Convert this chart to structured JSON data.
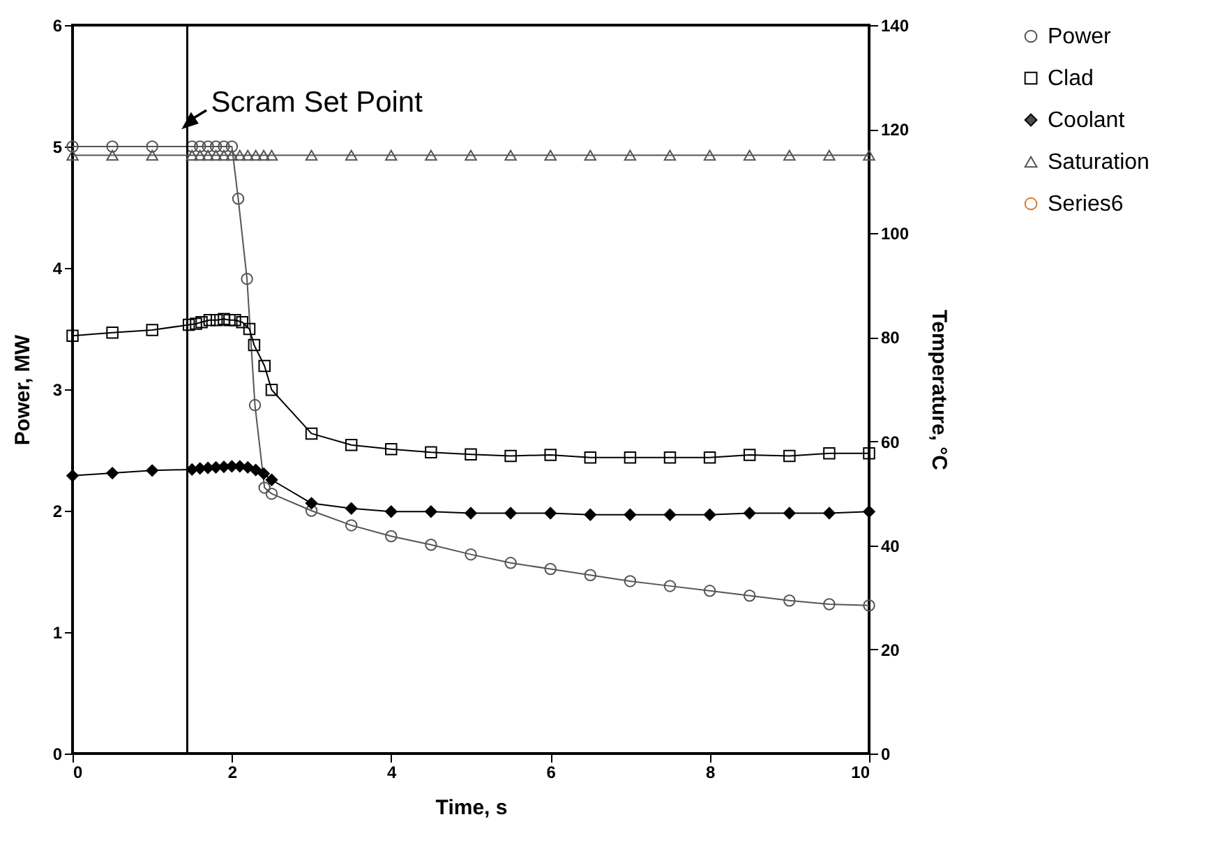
{
  "chart_data": {
    "type": "line",
    "xlabel": "Time, s",
    "ylabel": "Power, MW",
    "y2label": "Temperature, °C",
    "xlim": [
      0,
      10
    ],
    "xticks": [
      0,
      2,
      4,
      6,
      8,
      10
    ],
    "ylim": [
      0,
      6
    ],
    "yticks": [
      0,
      1,
      2,
      3,
      4,
      5,
      6
    ],
    "y2lim": [
      0,
      140
    ],
    "y2ticks": [
      0,
      20,
      40,
      60,
      80,
      100,
      120,
      140
    ],
    "grid": false,
    "legend": "right",
    "line_style": "solid",
    "ref_lines": [
      {
        "axis": "x",
        "value": 1.44,
        "label": "Scram Set Point",
        "color": "#000000"
      }
    ],
    "series": [
      {
        "name": "Power",
        "color": "#555555",
        "marker": "circle",
        "x": [
          0,
          0.5,
          1,
          1.5,
          1.6,
          1.7,
          1.8,
          1.9,
          2.0,
          2.08,
          2.19,
          2.29,
          2.41,
          2.5,
          3,
          3.5,
          4,
          4.5,
          5,
          5.5,
          6,
          6.5,
          7,
          7.5,
          8,
          8.5,
          9,
          9.5,
          10
        ],
        "values": [
          5.0,
          5.0,
          5.0,
          5.0,
          5.0,
          5.0,
          5.0,
          5.0,
          5.0,
          4.57,
          3.91,
          2.87,
          2.19,
          2.14,
          2.0,
          1.88,
          1.79,
          1.72,
          1.64,
          1.57,
          1.52,
          1.47,
          1.42,
          1.38,
          1.34,
          1.3,
          1.26,
          1.23,
          1.22
        ]
      },
      {
        "name": "Clad",
        "color": "#000000",
        "marker": "square",
        "axis": "y2",
        "x": [
          0,
          0.5,
          1,
          1.46,
          1.55,
          1.62,
          1.72,
          1.81,
          1.9,
          1.97,
          2.04,
          2.13,
          2.22,
          2.28,
          2.41,
          2.5,
          3,
          3.5,
          4,
          4.5,
          5,
          5.5,
          6,
          6.5,
          7,
          7.5,
          8,
          8.5,
          9,
          9.5,
          10
        ],
        "values": [
          80.3,
          80.9,
          81.4,
          82.4,
          82.6,
          82.9,
          83.3,
          83.3,
          83.5,
          83.3,
          83.3,
          82.9,
          81.6,
          78.5,
          74.5,
          69.9,
          61.5,
          59.3,
          58.5,
          57.9,
          57.5,
          57.2,
          57.4,
          56.9,
          56.9,
          56.9,
          56.9,
          57.4,
          57.2,
          57.7,
          57.7
        ]
      },
      {
        "name": "Coolant",
        "color": "#000000",
        "marker": "diamond",
        "axis": "y2",
        "x": [
          0,
          0.5,
          1,
          1.5,
          1.6,
          1.7,
          1.8,
          1.9,
          2.0,
          2.1,
          2.2,
          2.3,
          2.4,
          2.5,
          3,
          3.5,
          4,
          4.5,
          5,
          5.5,
          6,
          6.5,
          7,
          7.5,
          8,
          8.5,
          9,
          9.5,
          10
        ],
        "values": [
          53.4,
          53.9,
          54.4,
          54.6,
          54.8,
          54.9,
          55.0,
          55.1,
          55.2,
          55.2,
          55.0,
          54.5,
          53.8,
          52.6,
          48.1,
          47.1,
          46.5,
          46.5,
          46.2,
          46.2,
          46.2,
          45.9,
          45.9,
          45.9,
          45.9,
          46.2,
          46.2,
          46.2,
          46.5
        ]
      },
      {
        "name": "Saturation",
        "color": "#555555",
        "marker": "triangle",
        "axis": "y2",
        "x": [
          0,
          0.5,
          1,
          1.5,
          1.6,
          1.7,
          1.8,
          1.9,
          2.0,
          2.1,
          2.2,
          2.3,
          2.4,
          2.5,
          3,
          3.5,
          4,
          4.5,
          5,
          5.5,
          6,
          6.5,
          7,
          7.5,
          8,
          8.5,
          9,
          9.5,
          10
        ],
        "values": [
          115,
          115,
          115,
          115,
          115,
          115,
          115,
          115,
          115,
          115,
          115,
          115,
          115,
          115,
          115,
          115,
          115,
          115,
          115,
          115,
          115,
          115,
          115,
          115,
          115,
          115,
          115,
          115,
          115
        ]
      },
      {
        "name": "Series6",
        "color": "#e07b2a",
        "marker": "circle"
      }
    ]
  }
}
